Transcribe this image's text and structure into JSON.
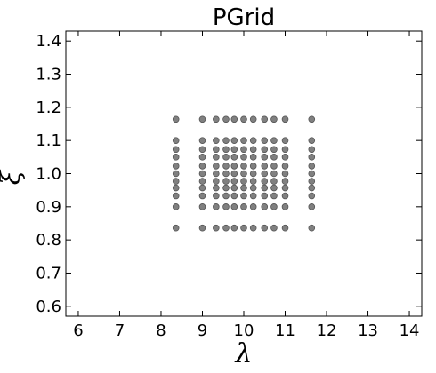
{
  "chart_data": {
    "type": "scatter",
    "title": "PGrid",
    "xlabel": "λ",
    "ylabel": "ξ",
    "xlim": [
      5.7,
      14.3
    ],
    "ylim": [
      0.57,
      1.43
    ],
    "grid": false,
    "x_ticks": [
      "6",
      "7",
      "8",
      "9",
      "10",
      "11",
      "12",
      "13",
      "14"
    ],
    "y_ticks": [
      "0.6",
      "0.7",
      "0.8",
      "0.9",
      "1.0",
      "1.1",
      "1.2",
      "1.3",
      "1.4"
    ],
    "marker_color": "#808080",
    "marker_edge_color": "#555555",
    "x_levels": [
      8.36,
      9.0,
      9.33,
      9.57,
      9.77,
      10.0,
      10.23,
      10.5,
      10.73,
      11.0,
      11.64
    ],
    "y_levels": [
      0.836,
      0.9,
      0.933,
      0.957,
      0.977,
      1.0,
      1.023,
      1.05,
      1.073,
      1.1,
      1.164
    ]
  }
}
